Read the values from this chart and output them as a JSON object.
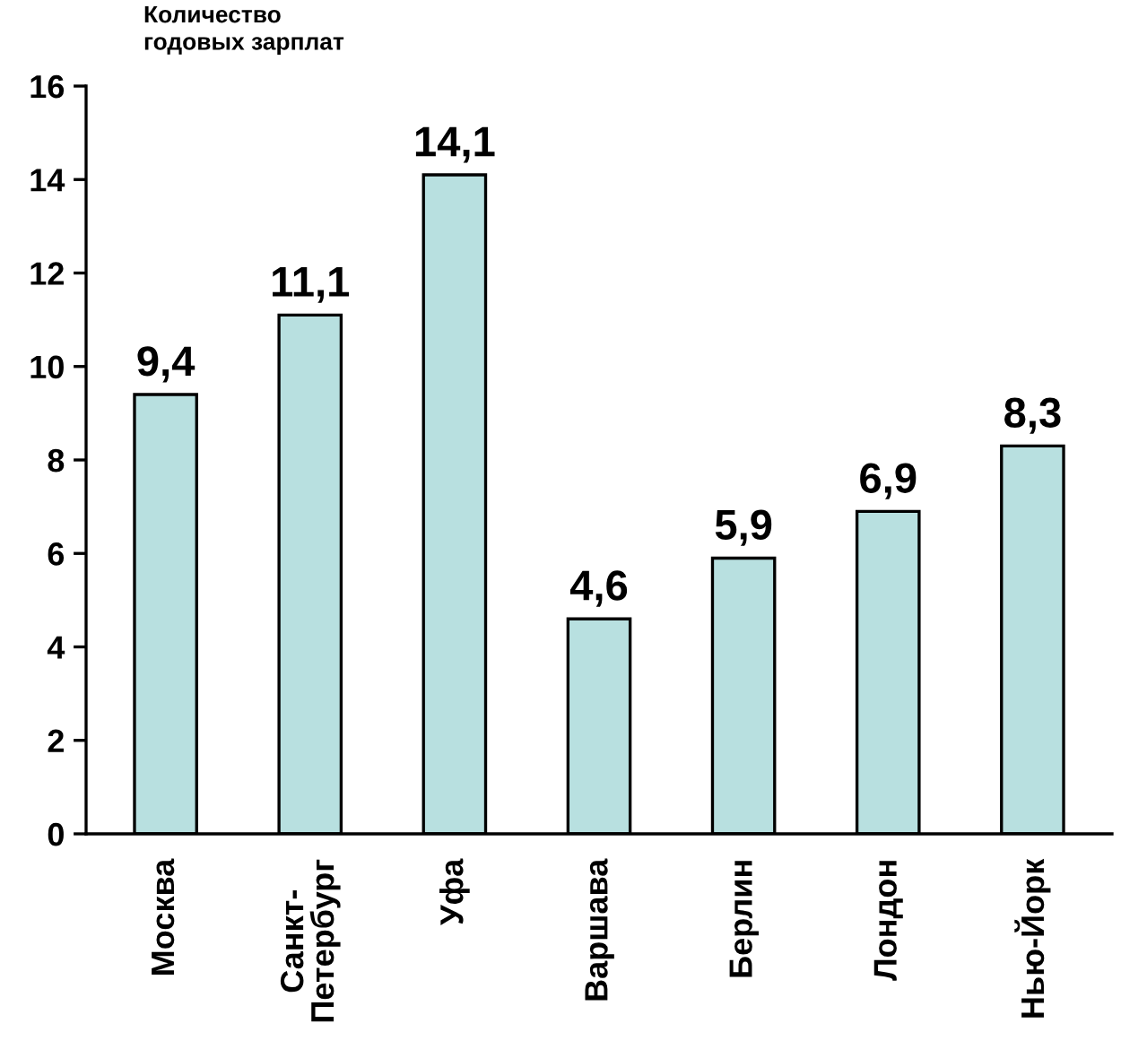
{
  "chart_data": {
    "type": "bar",
    "ylabel": "Количество\nгодовых зарплат",
    "categories": [
      "Москва",
      "Санкт-\nПетербург",
      "Уфа",
      "Варшава",
      "Берлин",
      "Лондон",
      "Нью-Йорк"
    ],
    "values": [
      9.4,
      11.1,
      14.1,
      4.6,
      5.9,
      6.9,
      8.3
    ],
    "value_labels": [
      "9,4",
      "11,1",
      "14,1",
      "4,6",
      "5,9",
      "6,9",
      "8,3"
    ],
    "color": "#b8e0e0",
    "ylim": [
      0,
      16
    ],
    "yticks": [
      0,
      2,
      4,
      6,
      8,
      10,
      12,
      14,
      16
    ],
    "grid": false,
    "legend": false
  }
}
